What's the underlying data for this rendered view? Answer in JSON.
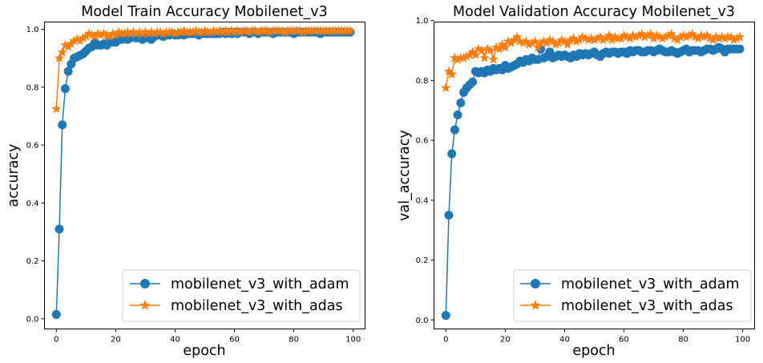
{
  "chart_data": [
    {
      "type": "line",
      "title": "Model Train Accuracy Mobilenet_v3",
      "xlabel": "epoch",
      "ylabel": "accuracy",
      "xlim": [
        -4,
        104
      ],
      "ylim": [
        -0.035,
        1.025
      ],
      "xticks": [
        0,
        20,
        40,
        60,
        80,
        100
      ],
      "xtick_labels": [
        "0",
        "20",
        "40",
        "60",
        "80",
        "100"
      ],
      "yticks": [
        0.0,
        0.2,
        0.4,
        0.6,
        0.8,
        1.0
      ],
      "ytick_labels": [
        "0.0",
        "0.2",
        "0.4",
        "0.6",
        "0.8",
        "1.0"
      ],
      "legend_position": "lower-right",
      "grid": false,
      "series": [
        {
          "name": "mobilenet_v3_with_adam",
          "color": "#1f77b4",
          "marker": "circle",
          "x": [
            0,
            1,
            2,
            3,
            4,
            5,
            6,
            7,
            8,
            9,
            10,
            11,
            12,
            13,
            14,
            15,
            16,
            17,
            18,
            19,
            20,
            21,
            22,
            23,
            24,
            25,
            26,
            27,
            28,
            29,
            30,
            31,
            32,
            33,
            34,
            35,
            36,
            37,
            38,
            39,
            40,
            41,
            42,
            43,
            44,
            45,
            46,
            47,
            48,
            49,
            50,
            51,
            52,
            53,
            54,
            55,
            56,
            57,
            58,
            59,
            60,
            61,
            62,
            63,
            64,
            65,
            66,
            67,
            68,
            69,
            70,
            71,
            72,
            73,
            74,
            75,
            76,
            77,
            78,
            79,
            80,
            81,
            82,
            83,
            84,
            85,
            86,
            87,
            88,
            89,
            90,
            91,
            92,
            93,
            94,
            95,
            96,
            97,
            98,
            99
          ],
          "y": [
            0.015,
            0.31,
            0.67,
            0.795,
            0.855,
            0.88,
            0.9,
            0.905,
            0.91,
            0.915,
            0.925,
            0.935,
            0.94,
            0.955,
            0.945,
            0.945,
            0.95,
            0.945,
            0.96,
            0.955,
            0.955,
            0.97,
            0.965,
            0.97,
            0.965,
            0.97,
            0.975,
            0.97,
            0.975,
            0.965,
            0.975,
            0.97,
            0.965,
            0.975,
            0.98,
            0.98,
            0.975,
            0.98,
            0.98,
            0.985,
            0.98,
            0.98,
            0.985,
            0.98,
            0.985,
            0.985,
            0.985,
            0.985,
            0.98,
            0.985,
            0.985,
            0.985,
            0.985,
            0.985,
            0.985,
            0.985,
            0.99,
            0.985,
            0.99,
            0.985,
            0.99,
            0.985,
            0.99,
            0.99,
            0.99,
            0.985,
            0.99,
            0.99,
            0.985,
            0.99,
            0.99,
            0.99,
            0.99,
            0.985,
            0.99,
            0.99,
            0.99,
            0.99,
            0.99,
            0.99,
            0.985,
            0.99,
            0.99,
            0.99,
            0.99,
            0.99,
            0.99,
            0.99,
            0.99,
            0.985,
            0.99,
            0.99,
            0.99,
            0.99,
            0.99,
            0.99,
            0.99,
            0.99,
            0.99,
            0.99
          ]
        },
        {
          "name": "mobilenet_v3_with_adas",
          "color": "#ff7f0e",
          "marker": "star",
          "x": [
            0,
            1,
            2,
            3,
            4,
            5,
            6,
            7,
            8,
            9,
            10,
            11,
            12,
            13,
            14,
            15,
            16,
            17,
            18,
            19,
            20,
            21,
            22,
            23,
            24,
            25,
            26,
            27,
            28,
            29,
            30,
            31,
            32,
            33,
            34,
            35,
            36,
            37,
            38,
            39,
            40,
            41,
            42,
            43,
            44,
            45,
            46,
            47,
            48,
            49,
            50,
            51,
            52,
            53,
            54,
            55,
            56,
            57,
            58,
            59,
            60,
            61,
            62,
            63,
            64,
            65,
            66,
            67,
            68,
            69,
            70,
            71,
            72,
            73,
            74,
            75,
            76,
            77,
            78,
            79,
            80,
            81,
            82,
            83,
            84,
            85,
            86,
            87,
            88,
            89,
            90,
            91,
            92,
            93,
            94,
            95,
            96,
            97,
            98,
            99
          ],
          "y": [
            0.725,
            0.9,
            0.92,
            0.945,
            0.94,
            0.95,
            0.96,
            0.965,
            0.96,
            0.97,
            0.975,
            0.985,
            0.98,
            0.975,
            0.985,
            0.98,
            0.985,
            0.98,
            0.975,
            0.985,
            0.98,
            0.99,
            0.985,
            0.985,
            0.99,
            0.985,
            0.99,
            0.985,
            0.99,
            0.985,
            0.99,
            0.985,
            0.99,
            0.985,
            0.99,
            0.99,
            0.985,
            0.99,
            0.99,
            0.99,
            0.985,
            0.99,
            0.99,
            0.995,
            0.99,
            0.99,
            0.99,
            0.995,
            0.99,
            0.99,
            0.995,
            0.99,
            0.99,
            0.995,
            0.99,
            0.995,
            0.99,
            0.995,
            0.99,
            0.995,
            0.99,
            0.995,
            0.99,
            0.995,
            0.995,
            0.99,
            0.995,
            0.995,
            0.99,
            0.995,
            0.995,
            0.995,
            0.99,
            0.995,
            0.995,
            0.995,
            0.995,
            0.99,
            0.995,
            0.995,
            0.995,
            0.995,
            0.995,
            0.99,
            0.995,
            0.995,
            0.995,
            0.995,
            0.995,
            0.995,
            0.995,
            0.995,
            0.995,
            0.995,
            0.995,
            0.995,
            0.995,
            0.995,
            0.995,
            0.995
          ]
        }
      ]
    },
    {
      "type": "line",
      "title": "Model Validation Accuracy Mobilenet_v3",
      "xlabel": "epoch",
      "ylabel": "val_accuracy",
      "xlim": [
        -4,
        104
      ],
      "ylim": [
        -0.03,
        0.995
      ],
      "xticks": [
        0,
        20,
        40,
        60,
        80,
        100
      ],
      "xtick_labels": [
        "0",
        "20",
        "40",
        "60",
        "80",
        "100"
      ],
      "yticks": [
        0.0,
        0.2,
        0.4,
        0.6,
        0.8,
        1.0
      ],
      "ytick_labels": [
        "0.0",
        "0.2",
        "0.4",
        "0.6",
        "0.8",
        "1.0"
      ],
      "legend_position": "lower-right",
      "grid": false,
      "series": [
        {
          "name": "mobilenet_v3_with_adam",
          "color": "#1f77b4",
          "marker": "circle",
          "x": [
            0,
            1,
            2,
            3,
            4,
            5,
            6,
            7,
            8,
            9,
            10,
            11,
            12,
            13,
            14,
            15,
            16,
            17,
            18,
            19,
            20,
            21,
            22,
            23,
            24,
            25,
            26,
            27,
            28,
            29,
            30,
            31,
            32,
            33,
            34,
            35,
            36,
            37,
            38,
            39,
            40,
            41,
            42,
            43,
            44,
            45,
            46,
            47,
            48,
            49,
            50,
            51,
            52,
            53,
            54,
            55,
            56,
            57,
            58,
            59,
            60,
            61,
            62,
            63,
            64,
            65,
            66,
            67,
            68,
            69,
            70,
            71,
            72,
            73,
            74,
            75,
            76,
            77,
            78,
            79,
            80,
            81,
            82,
            83,
            84,
            85,
            86,
            87,
            88,
            89,
            90,
            91,
            92,
            93,
            94,
            95,
            96,
            97,
            98,
            99
          ],
          "y": [
            0.015,
            0.35,
            0.555,
            0.635,
            0.685,
            0.725,
            0.76,
            0.775,
            0.785,
            0.795,
            0.83,
            0.825,
            0.83,
            0.825,
            0.835,
            0.83,
            0.84,
            0.835,
            0.84,
            0.835,
            0.85,
            0.84,
            0.845,
            0.85,
            0.855,
            0.865,
            0.86,
            0.87,
            0.865,
            0.875,
            0.87,
            0.87,
            0.905,
            0.875,
            0.88,
            0.895,
            0.875,
            0.88,
            0.885,
            0.88,
            0.885,
            0.88,
            0.875,
            0.885,
            0.88,
            0.89,
            0.885,
            0.89,
            0.885,
            0.89,
            0.895,
            0.885,
            0.88,
            0.89,
            0.895,
            0.89,
            0.895,
            0.895,
            0.89,
            0.895,
            0.895,
            0.89,
            0.9,
            0.895,
            0.9,
            0.9,
            0.895,
            0.895,
            0.9,
            0.9,
            0.895,
            0.9,
            0.905,
            0.9,
            0.895,
            0.895,
            0.9,
            0.895,
            0.89,
            0.895,
            0.9,
            0.905,
            0.895,
            0.9,
            0.9,
            0.9,
            0.895,
            0.9,
            0.905,
            0.905,
            0.9,
            0.905,
            0.91,
            0.905,
            0.895,
            0.905,
            0.905,
            0.905,
            0.905,
            0.905
          ]
        },
        {
          "name": "mobilenet_v3_with_adas",
          "color": "#ff7f0e",
          "marker": "star",
          "x": [
            0,
            1,
            2,
            3,
            4,
            5,
            6,
            7,
            8,
            9,
            10,
            11,
            12,
            13,
            14,
            15,
            16,
            17,
            18,
            19,
            20,
            21,
            22,
            23,
            24,
            25,
            26,
            27,
            28,
            29,
            30,
            31,
            32,
            33,
            34,
            35,
            36,
            37,
            38,
            39,
            40,
            41,
            42,
            43,
            44,
            45,
            46,
            47,
            48,
            49,
            50,
            51,
            52,
            53,
            54,
            55,
            56,
            57,
            58,
            59,
            60,
            61,
            62,
            63,
            64,
            65,
            66,
            67,
            68,
            69,
            70,
            71,
            72,
            73,
            74,
            75,
            76,
            77,
            78,
            79,
            80,
            81,
            82,
            83,
            84,
            85,
            86,
            87,
            88,
            89,
            90,
            91,
            92,
            93,
            94,
            95,
            96,
            97,
            98,
            99
          ],
          "y": [
            0.775,
            0.83,
            0.82,
            0.875,
            0.87,
            0.875,
            0.875,
            0.88,
            0.885,
            0.895,
            0.885,
            0.905,
            0.9,
            0.875,
            0.905,
            0.9,
            0.87,
            0.91,
            0.905,
            0.92,
            0.91,
            0.93,
            0.925,
            0.935,
            0.945,
            0.93,
            0.925,
            0.93,
            0.92,
            0.925,
            0.93,
            0.91,
            0.925,
            0.93,
            0.925,
            0.935,
            0.93,
            0.92,
            0.925,
            0.935,
            0.93,
            0.92,
            0.935,
            0.94,
            0.93,
            0.935,
            0.945,
            0.94,
            0.935,
            0.94,
            0.935,
            0.94,
            0.945,
            0.935,
            0.94,
            0.95,
            0.935,
            0.945,
            0.94,
            0.94,
            0.95,
            0.945,
            0.94,
            0.95,
            0.945,
            0.95,
            0.955,
            0.945,
            0.95,
            0.955,
            0.94,
            0.95,
            0.945,
            0.94,
            0.945,
            0.95,
            0.955,
            0.94,
            0.935,
            0.945,
            0.95,
            0.945,
            0.95,
            0.955,
            0.945,
            0.94,
            0.95,
            0.945,
            0.95,
            0.94,
            0.935,
            0.945,
            0.94,
            0.945,
            0.94,
            0.945,
            0.945,
            0.935,
            0.94,
            0.945
          ]
        }
      ]
    }
  ]
}
